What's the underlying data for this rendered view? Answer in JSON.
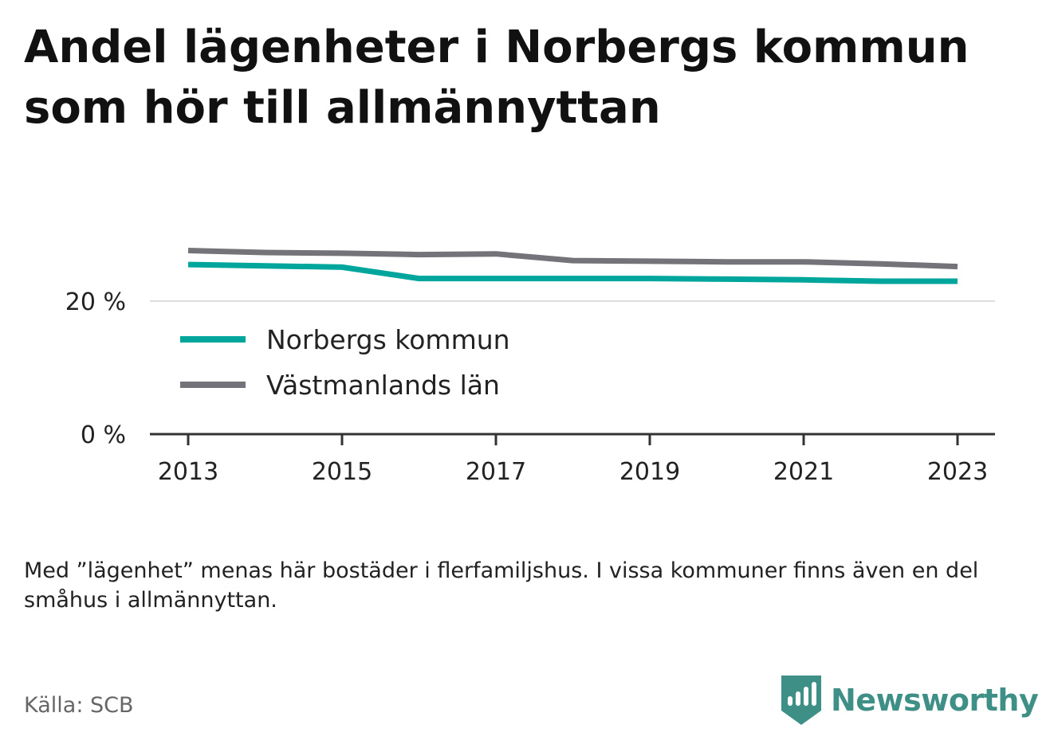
{
  "header": {
    "title": "Andel lägenheter i Norbergs kommun som hör till allmännyttan"
  },
  "chart_data": {
    "type": "line",
    "x": [
      2013,
      2014,
      2015,
      2016,
      2017,
      2018,
      2019,
      2020,
      2021,
      2022,
      2023
    ],
    "series": [
      {
        "name": "Norbergs kommun",
        "color": "#00a69c",
        "values": [
          25.5,
          25.3,
          25.1,
          23.4,
          23.4,
          23.4,
          23.4,
          23.3,
          23.2,
          23.0,
          23.0
        ]
      },
      {
        "name": "Västmanlands län",
        "color": "#74737a",
        "values": [
          27.6,
          27.3,
          27.2,
          27.0,
          27.1,
          26.1,
          26.0,
          25.9,
          25.9,
          25.6,
          25.2
        ]
      }
    ],
    "x_ticks": [
      "2013",
      "2015",
      "2017",
      "2019",
      "2021",
      "2023"
    ],
    "y_ticks": [
      {
        "value": 0,
        "label": "0 %"
      },
      {
        "value": 20,
        "label": "20 %"
      }
    ],
    "ylim": [
      0,
      30
    ],
    "grid": true,
    "legend_placement": "inside-left",
    "xlabel": "",
    "ylabel": ""
  },
  "footer": {
    "note": "Med ”lägenhet” menas här bostäder i flerfamiljshus. I vissa kommuner finns även en del småhus i allmännyttan.",
    "source": "Källa: SCB",
    "brand": "Newsworthy",
    "brand_icon": "newsworthy-logo-icon",
    "brand_color": "#3e8f86"
  }
}
